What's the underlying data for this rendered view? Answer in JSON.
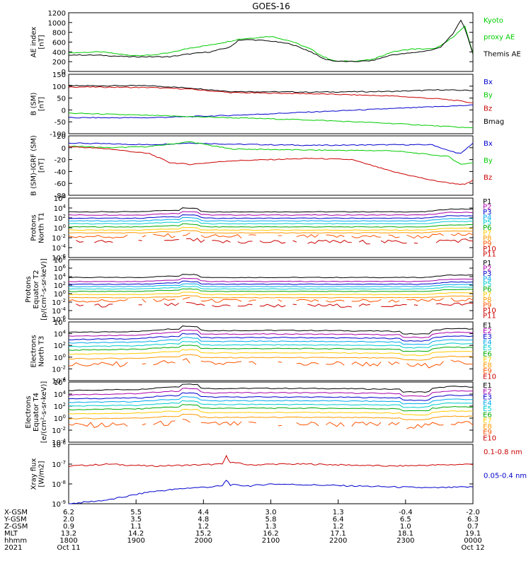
{
  "chart_data": {
    "title": "GOES-16",
    "type": "line",
    "panels": [
      {
        "ylabel": [
          "AE index",
          "[nT]"
        ],
        "yticks": [
          "1200",
          "1000",
          "800",
          "600",
          "400",
          "200",
          "0"
        ],
        "ylim": [
          0,
          1200
        ],
        "scale": "linear",
        "legend": [
          {
            "label": "Kyoto",
            "color": "#00cc00"
          },
          {
            "label": "proxy AE",
            "color": "#00cc00"
          },
          {
            "label": "Themis AE",
            "color": "#000000"
          }
        ],
        "series": [
          {
            "color": "#00cc00",
            "x": [
              0,
              8,
              15,
              20,
              25,
              30,
              35,
              40,
              42,
              45,
              50,
              55,
              60,
              63,
              66,
              70,
              75,
              80,
              85,
              90,
              92,
              95,
              98,
              100
            ],
            "y": [
              380,
              400,
              330,
              330,
              380,
              480,
              540,
              620,
              660,
              680,
              720,
              620,
              450,
              300,
              210,
              210,
              240,
              400,
              460,
              460,
              520,
              700,
              920,
              380
            ]
          },
          {
            "color": "#000000",
            "x": [
              0,
              8,
              15,
              20,
              25,
              30,
              35,
              40,
              42,
              45,
              50,
              55,
              60,
              63,
              66,
              70,
              75,
              80,
              85,
              90,
              92,
              95,
              97,
              98,
              100
            ],
            "y": [
              340,
              330,
              300,
              300,
              300,
              360,
              400,
              500,
              640,
              650,
              620,
              560,
              400,
              260,
              210,
              200,
              220,
              340,
              380,
              440,
              500,
              760,
              1050,
              880,
              350
            ]
          }
        ]
      },
      {
        "ylabel": [
          "B (SM)",
          "[nT]"
        ],
        "yticks": [
          "150",
          "100",
          "50",
          "0",
          "-50",
          "-100"
        ],
        "ylim": [
          -110,
          150
        ],
        "scale": "linear",
        "legend": [
          {
            "label": "Bx",
            "color": "#0000cc"
          },
          {
            "label": "By",
            "color": "#00cc00"
          },
          {
            "label": "Bz",
            "color": "#cc0000"
          },
          {
            "label": "Bmag",
            "color": "#000000"
          }
        ],
        "series": [
          {
            "color": "#000000",
            "x": [
              0,
              20,
              30,
              40,
              60,
              80,
              92,
              96,
              100
            ],
            "y": [
              100,
              100,
              90,
              75,
              72,
              75,
              82,
              80,
              80
            ]
          },
          {
            "color": "#cc0000",
            "x": [
              0,
              20,
              30,
              40,
              60,
              80,
              92,
              96,
              100
            ],
            "y": [
              95,
              92,
              85,
              70,
              65,
              55,
              42,
              35,
              25
            ]
          },
          {
            "color": "#0000cc",
            "x": [
              0,
              20,
              40,
              60,
              80,
              100
            ],
            "y": [
              -40,
              -40,
              -30,
              -15,
              0,
              15
            ]
          },
          {
            "color": "#00cc00",
            "x": [
              0,
              20,
              40,
              60,
              80,
              100
            ],
            "y": [
              -20,
              -30,
              -40,
              -50,
              -65,
              -85
            ]
          }
        ]
      },
      {
        "ylabel": [
          "B (SM)-IGRF (SM)",
          "[nT]"
        ],
        "yticks": [
          "20",
          "0",
          "-20",
          "-40",
          "-60",
          "-80"
        ],
        "ylim": [
          -80,
          20
        ],
        "scale": "linear",
        "legend": [
          {
            "label": "Bx",
            "color": "#0000cc"
          },
          {
            "label": "By",
            "color": "#00cc00"
          },
          {
            "label": "Bz",
            "color": "#cc0000"
          }
        ],
        "series": [
          {
            "color": "#0000cc",
            "x": [
              0,
              20,
              30,
              40,
              60,
              80,
              90,
              94,
              97,
              100
            ],
            "y": [
              8,
              5,
              8,
              6,
              4,
              5,
              5,
              -5,
              -10,
              8
            ]
          },
          {
            "color": "#00cc00",
            "x": [
              0,
              10,
              20,
              30,
              40,
              60,
              80,
              90,
              94,
              97,
              100
            ],
            "y": [
              3,
              0,
              2,
              10,
              -2,
              -4,
              -5,
              -12,
              -15,
              -28,
              -25
            ]
          },
          {
            "color": "#cc0000",
            "x": [
              0,
              10,
              20,
              25,
              30,
              40,
              60,
              70,
              80,
              90,
              95,
              98,
              100
            ],
            "y": [
              2,
              -2,
              -10,
              -25,
              -28,
              -22,
              -18,
              -20,
              -40,
              -55,
              -60,
              -62,
              -55
            ]
          }
        ]
      },
      {
        "ylabel": [
          "Protons",
          "North T1"
        ],
        "yticks": [
          "10^6",
          "10^4",
          "10^2",
          "10^0",
          "10^-2",
          "10^-4",
          "10^-6"
        ],
        "ylim": [
          -7,
          6
        ],
        "scale": "log",
        "channels": [
          "P1",
          "P2",
          "P3",
          "P4",
          "P5",
          "P6",
          "P7",
          "P8",
          "P9",
          "P10",
          "P11"
        ],
        "channel_colors": [
          "#000000",
          "#aa00aa",
          "#0000cc",
          "#00aaee",
          "#00cccc",
          "#00aa00",
          "#ffcc00",
          "#ff9900",
          "#ff5500",
          "#cc0000",
          "#cc0000"
        ],
        "levels": [
          3.0,
          2.3,
          1.6,
          1.0,
          0.4,
          -0.3,
          -1.0,
          -1.6,
          -2.4,
          -3.6,
          null
        ]
      },
      {
        "ylabel": [
          "Protons",
          "Equator T2",
          "[p/(cm²-s-sr-keV)]"
        ],
        "yticks": [
          "10^8",
          "10^6",
          "10^4",
          "10^2",
          "10^0",
          "10^-2",
          "10^-4",
          "10^-6"
        ],
        "ylim": [
          -7,
          8
        ],
        "scale": "log",
        "channels": [
          "P1",
          "P2",
          "P3",
          "P4",
          "P5",
          "P6",
          "P7",
          "P8",
          "P9",
          "P10",
          "P11"
        ],
        "channel_colors": [
          "#000000",
          "#aa00aa",
          "#0000cc",
          "#00aaee",
          "#00cccc",
          "#00aa00",
          "#ffcc00",
          "#ff9900",
          "#ff5500",
          "#cc0000",
          "#cc0000"
        ],
        "levels": [
          3.5,
          2.5,
          1.8,
          1.2,
          0.6,
          0.0,
          -0.8,
          -1.6,
          -2.4,
          -3.6,
          null
        ]
      },
      {
        "ylabel": [
          "Electrons",
          "North T3"
        ],
        "yticks": [
          "10^6",
          "10^4",
          "10^2",
          "10^0",
          "10^-2",
          "10^-4"
        ],
        "ylim": [
          -4,
          6
        ],
        "scale": "log",
        "channels": [
          "E1",
          "E2",
          "E3",
          "E4",
          "E5",
          "E6",
          "E7",
          "E8",
          "E9",
          "E10"
        ],
        "channel_colors": [
          "#000000",
          "#aa00aa",
          "#0000cc",
          "#00aaee",
          "#00cccc",
          "#00aa00",
          "#ffcc00",
          "#ff9900",
          "#ff5500",
          "#cc0000"
        ],
        "levels": [
          4.2,
          3.6,
          3.0,
          2.4,
          1.8,
          1.2,
          0.5,
          -0.3,
          -1.3,
          null
        ]
      },
      {
        "ylabel": [
          "Electrons",
          "Equator T4",
          "[e/(cm²-s-sr-keV)]"
        ],
        "yticks": [
          "10^6",
          "10^4",
          "10^2",
          "10^0",
          "10^-2",
          "10^-4"
        ],
        "ylim": [
          -4,
          6
        ],
        "scale": "log",
        "channels": [
          "E1",
          "E2",
          "E3",
          "E4",
          "E5",
          "E6",
          "E7",
          "E8",
          "E9",
          "E10"
        ],
        "channel_colors": [
          "#000000",
          "#aa00aa",
          "#0000cc",
          "#00aaee",
          "#00cccc",
          "#00aa00",
          "#ffcc00",
          "#ff9900",
          "#ff5500",
          "#cc0000"
        ],
        "levels": [
          4.6,
          3.9,
          3.2,
          2.6,
          2.0,
          1.4,
          0.7,
          -0.1,
          -1.2,
          null
        ]
      },
      {
        "ylabel": [
          "Xray flux",
          "[W/m2]"
        ],
        "yticks": [
          "10^-6",
          "10^-7",
          "10^-8",
          "10^-9"
        ],
        "ylim": [
          -9,
          -6
        ],
        "scale": "log",
        "legend": [
          {
            "label": "0.1-0.8 nm",
            "color": "#cc0000"
          },
          {
            "label": "0.05-0.4 nm",
            "color": "#0000cc"
          }
        ],
        "series": [
          {
            "color": "#cc0000",
            "x": [
              0,
              10,
              20,
              30,
              38,
              39,
              40,
              45,
              50,
              60,
              70,
              80,
              90,
              100
            ],
            "y": [
              -7.1,
              -7.0,
              -7.1,
              -7.05,
              -7.0,
              -6.6,
              -6.9,
              -7.05,
              -7.0,
              -7.0,
              -7.05,
              -7.1,
              -7.05,
              -7.0
            ]
          },
          {
            "color": "#0000cc",
            "x": [
              0,
              5,
              10,
              15,
              20,
              25,
              30,
              35,
              38,
              39,
              40,
              45,
              50,
              60,
              70,
              80,
              90,
              100
            ],
            "y": [
              -9.0,
              -8.9,
              -8.8,
              -8.6,
              -8.4,
              -8.3,
              -8.2,
              -8.15,
              -8.1,
              -7.8,
              -8.05,
              -8.1,
              -8.0,
              -8.05,
              -8.1,
              -8.15,
              -8.2,
              -8.15
            ]
          }
        ]
      }
    ],
    "x_axis": {
      "row_labels": [
        "X-GSM",
        "Y-GSM",
        "Z-GSM",
        "MLT",
        "hhmm",
        "2021"
      ],
      "columns": [
        {
          "values": [
            "6.2",
            "2.0",
            "0.9",
            "13.2",
            "1800",
            "Oct 11"
          ]
        },
        {
          "values": [
            "5.5",
            "3.5",
            "1.1",
            "14.2",
            "1900",
            ""
          ]
        },
        {
          "values": [
            "4.4",
            "4.8",
            "1.2",
            "15.2",
            "2000",
            ""
          ]
        },
        {
          "values": [
            "3.0",
            "5.8",
            "1.3",
            "16.2",
            "2100",
            ""
          ]
        },
        {
          "values": [
            "1.3",
            "6.4",
            "1.2",
            "17.1",
            "2200",
            ""
          ]
        },
        {
          "values": [
            "-0.4",
            "6.5",
            "1.0",
            "18.1",
            "2300",
            ""
          ]
        },
        {
          "values": [
            "-2.0",
            "6.3",
            "0.7",
            "19.1",
            "0000",
            "Oct 12"
          ]
        }
      ]
    }
  }
}
